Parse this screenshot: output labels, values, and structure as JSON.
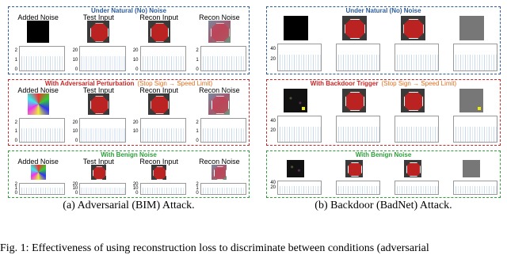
{
  "panels": [
    {
      "caption": "(a) Adversarial (BIM) Attack.",
      "sections": [
        {
          "title": "Under Natural (No) Noise",
          "columns": [
            {
              "label": "Added Noise",
              "yticks": [
                2,
                1,
                0
              ]
            },
            {
              "label": "Test Input",
              "yticks": [
                20,
                10,
                0
              ]
            },
            {
              "label": "Recon Input",
              "yticks": [
                20,
                10,
                0
              ]
            },
            {
              "label": "Recon  Noise",
              "yticks": [
                2,
                1,
                0
              ]
            }
          ]
        },
        {
          "title": "With Adversarial Perturbation",
          "subtitle": "(Stop Sign → Speed Limit)",
          "columns": [
            {
              "label": "Added Noise",
              "yticks": [
                2,
                1,
                0
              ]
            },
            {
              "label": "Test Input",
              "yticks": [
                20,
                10,
                0
              ]
            },
            {
              "label": "Recon Input",
              "yticks": [
                20,
                10
              ]
            },
            {
              "label": "Recon  Noise",
              "yticks": [
                2,
                1,
                0
              ]
            }
          ]
        },
        {
          "title": "With Benign Noise",
          "columns": [
            {
              "label": "Added Noise",
              "yticks": [
                2,
                1,
                0
              ]
            },
            {
              "label": "Test Input",
              "yticks": [
                20,
                10,
                0
              ]
            },
            {
              "label": "Recon Input",
              "yticks": [
                20,
                10,
                0
              ]
            },
            {
              "label": "Recon  Noise",
              "yticks": [
                2,
                1,
                0
              ]
            }
          ]
        }
      ]
    },
    {
      "caption": "(b) Backdoor (BadNet) Attack.",
      "sections": [
        {
          "title": "Under Natural (No) Noise",
          "yticks": [
            40,
            20
          ]
        },
        {
          "title": "With Backdoor Trigger",
          "subtitle": "(Stop Sign → Speed Limit)",
          "yticks": [
            40,
            20
          ]
        },
        {
          "title": "With Benign Noise",
          "yticks": [
            40,
            20
          ]
        }
      ]
    }
  ],
  "figure_caption": "Fig. 1: Effectiveness of using reconstruction loss to discriminate between conditions (adversarial"
}
